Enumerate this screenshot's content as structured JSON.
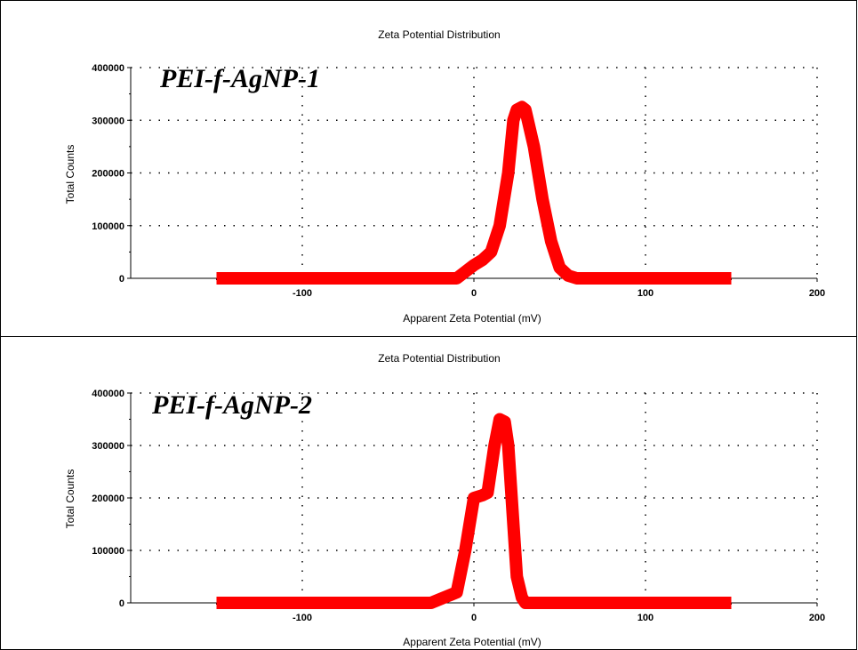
{
  "colors": {
    "series": "#ff0000",
    "frame": "#000000",
    "grid": "#000000"
  },
  "chart_data": [
    {
      "type": "line",
      "title": "Zeta Potential Distribution",
      "annotation": "PEI-f-AgNP-1",
      "xlabel": "Apparent Zeta Potential (mV)",
      "ylabel": "Total Counts",
      "xlim": [
        -200,
        200
      ],
      "ylim": [
        0,
        400000
      ],
      "xticks": [
        -100,
        0,
        100,
        200
      ],
      "yticks": [
        0,
        100000,
        200000,
        300000,
        400000
      ],
      "grid": true,
      "series": [
        {
          "x": [
            -150,
            -10,
            0,
            5,
            10,
            15,
            20,
            23,
            25,
            28,
            30,
            35,
            40,
            45,
            50,
            55,
            60,
            150
          ],
          "y": [
            0,
            0,
            25000,
            35000,
            50000,
            100000,
            200000,
            300000,
            320000,
            325000,
            320000,
            250000,
            150000,
            70000,
            20000,
            5000,
            0,
            0
          ]
        }
      ]
    },
    {
      "type": "line",
      "title": "Zeta Potential Distribution",
      "annotation": "PEI-f-AgNP-2",
      "xlabel": "Apparent Zeta Potential (mV)",
      "ylabel": "Total Counts",
      "xlim": [
        -200,
        200
      ],
      "ylim": [
        0,
        400000
      ],
      "xticks": [
        -100,
        0,
        100,
        200
      ],
      "yticks": [
        0,
        100000,
        200000,
        300000,
        400000
      ],
      "grid": true,
      "series": [
        {
          "x": [
            -150,
            -25,
            -10,
            -5,
            0,
            5,
            8,
            12,
            15,
            18,
            20,
            23,
            25,
            28,
            30,
            35,
            150
          ],
          "y": [
            0,
            0,
            20000,
            100000,
            200000,
            205000,
            210000,
            300000,
            350000,
            345000,
            300000,
            150000,
            50000,
            10000,
            0,
            0,
            0
          ]
        }
      ]
    }
  ]
}
